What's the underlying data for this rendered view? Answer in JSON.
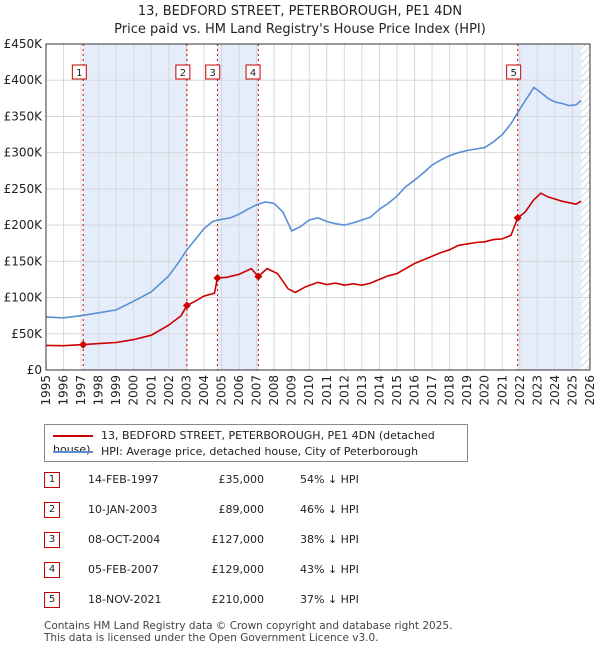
{
  "title_line1": "13, BEDFORD STREET, PETERBOROUGH, PE1 4DN",
  "title_line2": "Price paid vs. HM Land Registry's House Price Index (HPI)",
  "colors": {
    "red": "#cc0000",
    "blue": "#5a8fd6",
    "band": "#dce6f8",
    "grid": "#d8d8d8"
  },
  "chart_data": {
    "type": "line",
    "xlim": [
      1995,
      2026
    ],
    "ylim": [
      0,
      450000
    ],
    "x_ticks": [
      "1995",
      "1996",
      "1997",
      "1998",
      "1999",
      "2000",
      "2001",
      "2002",
      "2003",
      "2004",
      "2005",
      "2006",
      "2007",
      "2008",
      "2009",
      "2010",
      "2011",
      "2012",
      "2013",
      "2014",
      "2015",
      "2016",
      "2017",
      "2018",
      "2019",
      "2020",
      "2021",
      "2022",
      "2023",
      "2024",
      "2025",
      "2026"
    ],
    "y_ticks": [
      {
        "value": 0,
        "label": "£0"
      },
      {
        "value": 50000,
        "label": "£50K"
      },
      {
        "value": 100000,
        "label": "£100K"
      },
      {
        "value": 150000,
        "label": "£150K"
      },
      {
        "value": 200000,
        "label": "£200K"
      },
      {
        "value": 250000,
        "label": "£250K"
      },
      {
        "value": 300000,
        "label": "£300K"
      },
      {
        "value": 350000,
        "label": "£350K"
      },
      {
        "value": 400000,
        "label": "£400K"
      },
      {
        "value": 450000,
        "label": "£450K"
      }
    ],
    "bands": [
      [
        1997.12,
        2003.03
      ],
      [
        2004.77,
        2007.1
      ],
      [
        2021.88,
        2025.5
      ]
    ],
    "series": [
      {
        "name": "13, BEDFORD STREET, PETERBOROUGH, PE1 4DN (detached house)",
        "color": "#cc0000",
        "points": [
          [
            1995,
            34000
          ],
          [
            1996,
            33500
          ],
          [
            1997.12,
            35000
          ],
          [
            1998,
            36500
          ],
          [
            1999,
            38000
          ],
          [
            2000,
            42000
          ],
          [
            2001,
            48000
          ],
          [
            2002,
            62000
          ],
          [
            2002.7,
            75000
          ],
          [
            2003.03,
            89000
          ],
          [
            2003.5,
            95000
          ],
          [
            2004,
            102000
          ],
          [
            2004.6,
            106000
          ],
          [
            2004.77,
            127000
          ],
          [
            2005.3,
            128000
          ],
          [
            2006,
            132000
          ],
          [
            2006.7,
            140000
          ],
          [
            2007.1,
            129000
          ],
          [
            2007.6,
            140000
          ],
          [
            2008.2,
            133000
          ],
          [
            2008.8,
            112000
          ],
          [
            2009.2,
            107000
          ],
          [
            2009.8,
            115000
          ],
          [
            2010.5,
            121000
          ],
          [
            2011,
            118000
          ],
          [
            2011.5,
            120000
          ],
          [
            2012,
            117000
          ],
          [
            2012.5,
            119000
          ],
          [
            2013,
            117000
          ],
          [
            2013.5,
            120000
          ],
          [
            2014,
            125000
          ],
          [
            2014.5,
            130000
          ],
          [
            2015,
            133000
          ],
          [
            2015.5,
            140000
          ],
          [
            2016,
            147000
          ],
          [
            2016.5,
            152000
          ],
          [
            2017,
            157000
          ],
          [
            2017.5,
            162000
          ],
          [
            2018,
            166000
          ],
          [
            2018.5,
            172000
          ],
          [
            2019,
            174000
          ],
          [
            2019.5,
            176000
          ],
          [
            2020,
            177000
          ],
          [
            2020.5,
            180000
          ],
          [
            2021,
            181000
          ],
          [
            2021.5,
            186000
          ],
          [
            2021.88,
            210000
          ],
          [
            2022.3,
            218000
          ],
          [
            2022.8,
            235000
          ],
          [
            2023.2,
            244000
          ],
          [
            2023.6,
            239000
          ],
          [
            2024,
            236000
          ],
          [
            2024.4,
            233000
          ],
          [
            2024.8,
            231000
          ],
          [
            2025.2,
            229000
          ],
          [
            2025.5,
            233000
          ]
        ]
      },
      {
        "name": "HPI: Average price, detached house, City of Peterborough",
        "color": "#5a8fd6",
        "points": [
          [
            1995,
            73000
          ],
          [
            1996,
            72000
          ],
          [
            1997,
            75000
          ],
          [
            1998,
            79000
          ],
          [
            1999,
            83000
          ],
          [
            2000,
            95000
          ],
          [
            2001,
            108000
          ],
          [
            2002,
            130000
          ],
          [
            2002.6,
            150000
          ],
          [
            2003,
            165000
          ],
          [
            2003.5,
            180000
          ],
          [
            2004,
            195000
          ],
          [
            2004.5,
            205000
          ],
          [
            2005,
            208000
          ],
          [
            2005.5,
            210000
          ],
          [
            2006,
            215000
          ],
          [
            2006.5,
            222000
          ],
          [
            2007,
            228000
          ],
          [
            2007.5,
            232000
          ],
          [
            2008,
            230000
          ],
          [
            2008.5,
            218000
          ],
          [
            2009,
            192000
          ],
          [
            2009.5,
            198000
          ],
          [
            2010,
            207000
          ],
          [
            2010.5,
            210000
          ],
          [
            2011,
            205000
          ],
          [
            2011.5,
            202000
          ],
          [
            2012,
            200000
          ],
          [
            2012.5,
            203000
          ],
          [
            2013,
            207000
          ],
          [
            2013.5,
            211000
          ],
          [
            2014,
            222000
          ],
          [
            2014.5,
            230000
          ],
          [
            2015,
            240000
          ],
          [
            2015.5,
            253000
          ],
          [
            2016,
            262000
          ],
          [
            2016.5,
            272000
          ],
          [
            2017,
            283000
          ],
          [
            2017.5,
            290000
          ],
          [
            2018,
            296000
          ],
          [
            2018.5,
            300000
          ],
          [
            2019,
            303000
          ],
          [
            2019.5,
            305000
          ],
          [
            2020,
            307000
          ],
          [
            2020.5,
            315000
          ],
          [
            2021,
            325000
          ],
          [
            2021.5,
            340000
          ],
          [
            2022,
            360000
          ],
          [
            2022.4,
            375000
          ],
          [
            2022.8,
            390000
          ],
          [
            2023.2,
            383000
          ],
          [
            2023.6,
            375000
          ],
          [
            2024,
            370000
          ],
          [
            2024.4,
            368000
          ],
          [
            2024.8,
            365000
          ],
          [
            2025.2,
            366000
          ],
          [
            2025.5,
            372000
          ]
        ]
      }
    ],
    "sales": [
      {
        "num": "1",
        "x": 1997.12,
        "price": 35000
      },
      {
        "num": "2",
        "x": 2003.03,
        "price": 89000
      },
      {
        "num": "3",
        "x": 2004.77,
        "price": 127000
      },
      {
        "num": "4",
        "x": 2007.1,
        "price": 129000
      },
      {
        "num": "5",
        "x": 2021.88,
        "price": 210000
      }
    ],
    "marker_labels": [
      {
        "num": "1",
        "x": 1996.9
      },
      {
        "num": "2",
        "x": 2002.8
      },
      {
        "num": "3",
        "x": 2004.5
      },
      {
        "num": "4",
        "x": 2006.8
      },
      {
        "num": "5",
        "x": 2021.65
      }
    ]
  },
  "legend": {
    "red_label": "13, BEDFORD STREET, PETERBOROUGH, PE1 4DN (detached house)",
    "blue_label": "HPI: Average price, detached house, City of Peterborough"
  },
  "transactions": [
    {
      "num": "1",
      "date": "14-FEB-1997",
      "price": "£35,000",
      "hpi": "54% ↓ HPI"
    },
    {
      "num": "2",
      "date": "10-JAN-2003",
      "price": "£89,000",
      "hpi": "46% ↓ HPI"
    },
    {
      "num": "3",
      "date": "08-OCT-2004",
      "price": "£127,000",
      "hpi": "38% ↓ HPI"
    },
    {
      "num": "4",
      "date": "05-FEB-2007",
      "price": "£129,000",
      "hpi": "43% ↓ HPI"
    },
    {
      "num": "5",
      "date": "18-NOV-2021",
      "price": "£210,000",
      "hpi": "37% ↓ HPI"
    }
  ],
  "footer_line1": "Contains HM Land Registry data © Crown copyright and database right 2025.",
  "footer_line2": "This data is licensed under the Open Government Licence v3.0."
}
